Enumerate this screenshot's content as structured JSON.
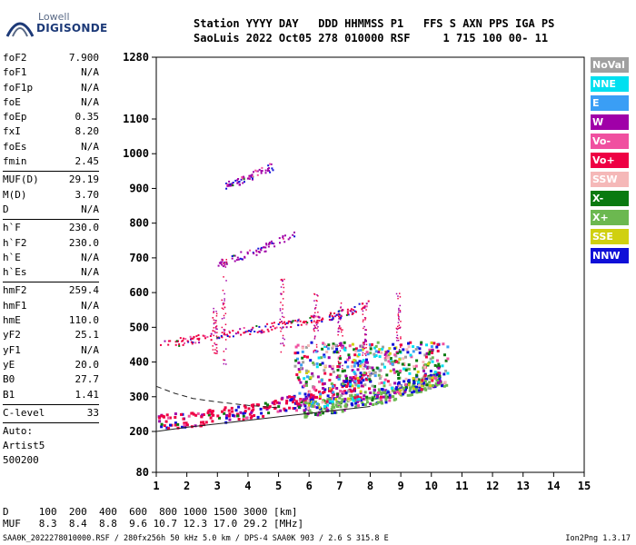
{
  "logo": {
    "line1": "Lowell",
    "line2": "DIGISONDE"
  },
  "header": {
    "line1": "Station YYYY DAY   DDD HHMMSS P1   FFS S AXN PPS IGA PS",
    "line2": "SaoLuis 2022 Oct05 278 010000 RSF     1 715 100 00- 11"
  },
  "params": [
    {
      "k": "foF2",
      "v": "7.900"
    },
    {
      "k": "foF1",
      "v": "N/A"
    },
    {
      "k": "foF1p",
      "v": "N/A"
    },
    {
      "k": "foE",
      "v": "N/A"
    },
    {
      "k": "foEp",
      "v": "0.35"
    },
    {
      "k": "fxI",
      "v": "8.20"
    },
    {
      "k": "foEs",
      "v": "N/A"
    },
    {
      "k": "fmin",
      "v": "2.45"
    },
    {
      "sep": true
    },
    {
      "k": "MUF(D)",
      "v": "29.19"
    },
    {
      "k": "M(D)",
      "v": "3.70"
    },
    {
      "k": "D",
      "v": "N/A"
    },
    {
      "sep": true
    },
    {
      "k": "h`F",
      "v": "230.0"
    },
    {
      "k": "h`F2",
      "v": "230.0"
    },
    {
      "k": "h`E",
      "v": "N/A"
    },
    {
      "k": "h`Es",
      "v": "N/A"
    },
    {
      "sep": true
    },
    {
      "k": "hmF2",
      "v": "259.4"
    },
    {
      "k": "hmF1",
      "v": "N/A"
    },
    {
      "k": "hmE",
      "v": "110.0"
    },
    {
      "k": "yF2",
      "v": "25.1"
    },
    {
      "k": "yF1",
      "v": "N/A"
    },
    {
      "k": "yE",
      "v": "20.0"
    },
    {
      "k": "B0",
      "v": "27.7"
    },
    {
      "k": "B1",
      "v": "1.41"
    },
    {
      "sep": true
    },
    {
      "k": "C-level",
      "v": "33"
    },
    {
      "sep": true
    },
    {
      "text": "Auto:"
    },
    {
      "text": "Artist5"
    },
    {
      "text": "500200"
    }
  ],
  "legend": [
    {
      "label": "NoVal",
      "color": "#a0a0a0"
    },
    {
      "label": "NNE",
      "color": "#00e0f0"
    },
    {
      "label": "E",
      "color": "#3a9ef5"
    },
    {
      "label": "W",
      "color": "#a000a8"
    },
    {
      "label": "Vo-",
      "color": "#f050a0"
    },
    {
      "label": "Vo+",
      "color": "#ee0044"
    },
    {
      "label": "SSW",
      "color": "#f5b8b8"
    },
    {
      "label": "X-",
      "color": "#0a7a10"
    },
    {
      "label": "X+",
      "color": "#6cb850"
    },
    {
      "label": "SSE",
      "color": "#d0d010"
    },
    {
      "label": "NNW",
      "color": "#1010d8"
    }
  ],
  "chart_data": {
    "type": "scatter",
    "x_ticks": [
      1,
      2,
      3,
      4,
      5,
      6,
      7,
      8,
      9,
      10,
      11,
      12,
      13,
      14,
      15
    ],
    "y_ticks": [
      80,
      200,
      300,
      400,
      500,
      600,
      700,
      800,
      900,
      1000,
      1100,
      1280
    ],
    "xlim": [
      1,
      15
    ],
    "ylim": [
      80,
      1280
    ],
    "y_scale": "nonlinear",
    "traces": [
      {
        "name": "F-trace O",
        "x": [
          1.05,
          1.5,
          2.0,
          2.5,
          3.0,
          3.5,
          4.0,
          4.5,
          5.0,
          5.5,
          6.0,
          6.5,
          7.0,
          7.5,
          8.0
        ],
        "y": [
          228,
          232,
          236,
          242,
          248,
          255,
          262,
          270,
          278,
          287,
          298,
          310,
          325,
          345,
          370
        ],
        "color": "#ee0044"
      },
      {
        "name": "F-trace X",
        "x": [
          5.8,
          6.5,
          7.2,
          7.8,
          8.5,
          9.2,
          9.8,
          10.3
        ],
        "y": [
          265,
          275,
          285,
          296,
          310,
          325,
          345,
          360
        ],
        "color": "#6cb850"
      },
      {
        "name": "2nd hop",
        "x": [
          1.1,
          2.0,
          3.0,
          4.0,
          5.0,
          6.0,
          7.0,
          8.0
        ],
        "y": [
          450,
          465,
          478,
          492,
          507,
          522,
          540,
          570
        ],
        "color": "#ee0044"
      },
      {
        "name": "3rd hop",
        "x": [
          3.0,
          3.5,
          4.0,
          4.5,
          5.0,
          5.5
        ],
        "y": [
          685,
          700,
          715,
          730,
          750,
          772
        ],
        "color": "#a000a8"
      },
      {
        "name": "4th hop",
        "x": [
          3.2,
          3.6,
          4.0,
          4.4,
          4.8
        ],
        "y": [
          905,
          920,
          935,
          950,
          965
        ],
        "color": "#a000a8"
      }
    ],
    "profile_lines": [
      {
        "style": "solid",
        "x": [
          1.0,
          2.0,
          3.0,
          4.0,
          5.0,
          6.0,
          7.0,
          8.0
        ],
        "y": [
          200,
          212,
          222,
          232,
          242,
          252,
          262,
          272
        ]
      },
      {
        "style": "dashed",
        "x": [
          1.0,
          1.6,
          2.2,
          3.0,
          4.0,
          5.0
        ],
        "y": [
          330,
          310,
          295,
          285,
          275,
          268
        ]
      }
    ]
  },
  "footer": {
    "line1": "D     100  200  400  600  800 1000 1500 3000 [km]",
    "line2": "MUF   8.3  8.4  8.8  9.6 10.7 12.3 17.0 29.2 [MHz]",
    "bottom": "SAA0K_2022278010000.RSF / 280fx256h 50 kHz 5.0 km / DPS-4 SAA0K 903 / 2.6 S 315.8 E",
    "version": "Ion2Png 1.3.17"
  }
}
